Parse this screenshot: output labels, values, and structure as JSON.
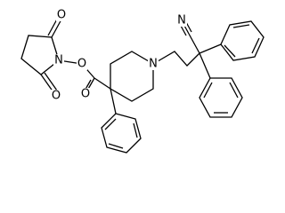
{
  "atoms": [
    {
      "label": "O"
    },
    {
      "label": "N"
    },
    {
      "label": "O"
    },
    {
      "label": "O"
    },
    {
      "label": "O"
    },
    {
      "label": "N"
    },
    {
      "label": "N"
    }
  ]
}
